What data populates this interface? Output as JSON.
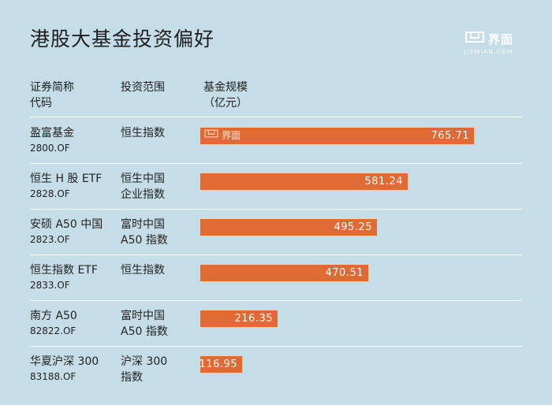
{
  "title": "港股大基金投资偏好",
  "logo": {
    "text": "界面",
    "sub": "JIEMIAN.COM",
    "icon": "jiemian-logo-icon"
  },
  "headers": {
    "name_line1": "证券简称",
    "name_line2": "代码",
    "scope": "投资范围",
    "size_line1": "基金规模",
    "size_line2": "（亿元）"
  },
  "rows": [
    {
      "name": "盈富基金",
      "code": "2800.OF",
      "scope_lines": [
        "恒生指数",
        ""
      ],
      "value_label": "765.71"
    },
    {
      "name": "恒生 H 股 ETF",
      "code": "2828.OF",
      "scope_lines": [
        "恒生中国",
        "企业指数"
      ],
      "value_label": "581.24"
    },
    {
      "name": "安硕 A50 中国",
      "code": "2823.OF",
      "scope_lines": [
        "富时中国",
        "A50 指数"
      ],
      "value_label": "495.25"
    },
    {
      "name": "恒生指数 ETF",
      "code": "2833.OF",
      "scope_lines": [
        "恒生指数",
        ""
      ],
      "value_label": "470.51"
    },
    {
      "name": "南方 A50",
      "code": "82822.OF",
      "scope_lines": [
        "富时中国",
        "A50 指数"
      ],
      "value_label": "216.35"
    },
    {
      "name": "华夏沪深 300",
      "code": "83188.OF",
      "scope_lines": [
        "沪深 300",
        "指数"
      ],
      "value_label": "116.95"
    }
  ],
  "chart_data": {
    "type": "bar",
    "orientation": "horizontal",
    "categories": [
      "盈富基金",
      "恒生 H 股 ETF",
      "安硕 A50 中国",
      "恒生指数 ETF",
      "南方 A50",
      "华夏沪深 300"
    ],
    "values": [
      765.71,
      581.24,
      495.25,
      470.51,
      216.35,
      116.95
    ],
    "xlim": [
      0,
      765.71
    ],
    "grid": false,
    "colors": {
      "bar": "#e06a33",
      "background": "#c5dde6",
      "separator": "#ffffff"
    }
  },
  "watermark": {
    "text": "界面",
    "icon": "jiemian-watermark-icon"
  }
}
